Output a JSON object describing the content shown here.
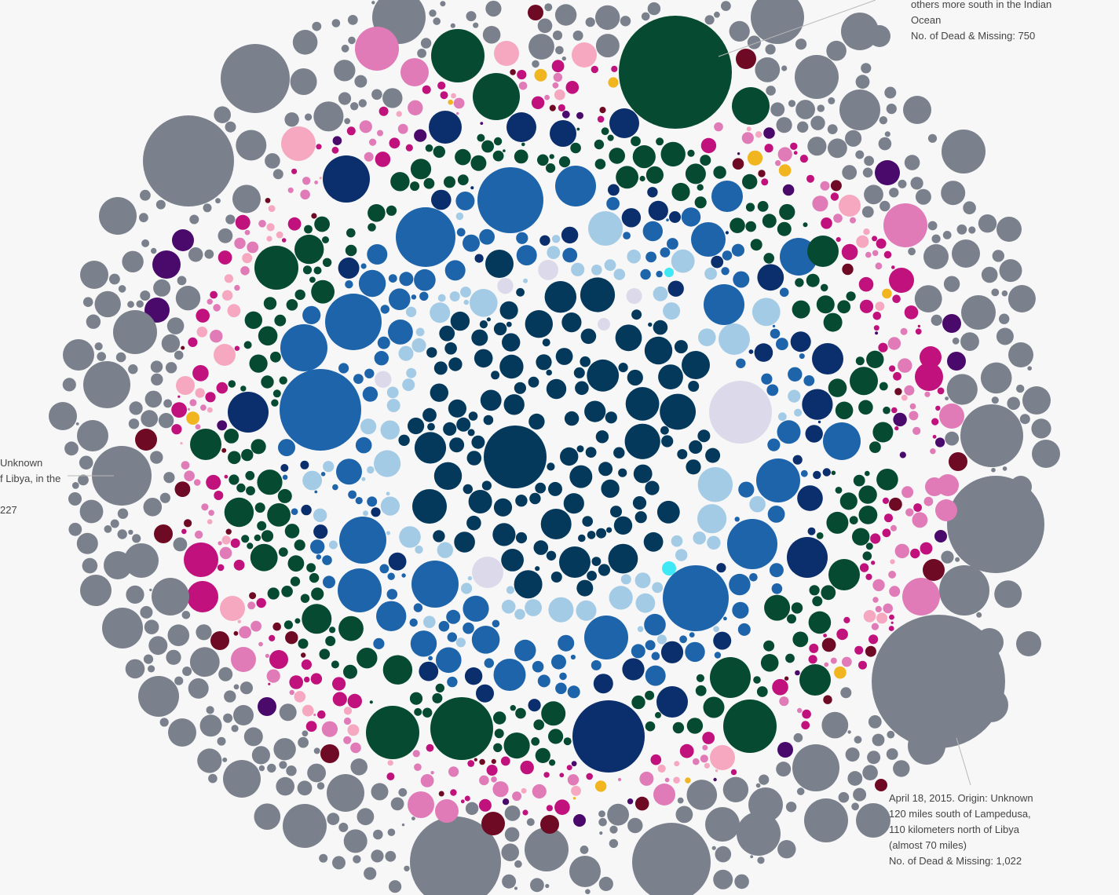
{
  "chart_data": {
    "type": "packed-bubble",
    "title": "",
    "encoding": "Each circle is one recorded incident; circle area proportional to number of dead and missing; colour encodes a category group",
    "palette": {
      "core": "#05395c",
      "light_blue": "#a4cbe6",
      "pale_lilac": "#dcdaea",
      "mid_blue": "#1e64ab",
      "navy": "#0b2e6d",
      "dark_green": "#064a32",
      "pink": "#e07bb8",
      "light_pink": "#f6a8c0",
      "magenta": "#c0117d",
      "maroon": "#6e0a24",
      "purple": "#4a0a6b",
      "cyan": "#3fe8f5",
      "gold": "#f0b51f",
      "gray": "#7b818c"
    },
    "annotations": [
      {
        "lines": [
          "others more south in the Indian",
          "Ocean",
          "No. of Dead & Missing: 750"
        ],
        "value": 750
      },
      {
        "lines": [
          "Unknown",
          "f Libya, in the",
          "",
          "227"
        ],
        "value": 227
      },
      {
        "lines": [
          "April 18, 2015. Origin: Unknown",
          "120 miles south of Lampedusa,",
          "110 kilometers north of Libya",
          "(almost 70 miles)",
          "No. of Dead & Missing: 1,022"
        ],
        "value": 1022
      }
    ]
  }
}
